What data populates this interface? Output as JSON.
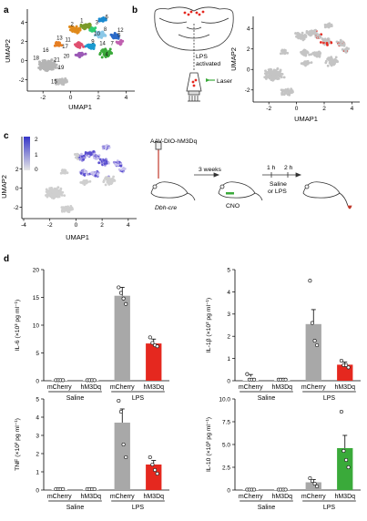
{
  "panel_letters": {
    "a": "a",
    "b": "b",
    "c": "c",
    "d": "d"
  },
  "umap": {
    "xlabel": "UMAP1",
    "ylabel": "UMAP2",
    "xticks": [
      "-2",
      "0",
      "2",
      "4"
    ],
    "yticks": [
      "4",
      "2",
      "0",
      "-2"
    ],
    "xticks_c": [
      "-4",
      "-2",
      "0",
      "2",
      "4"
    ],
    "yticks_c": [
      "2",
      "0",
      "-2"
    ]
  },
  "cluster_labels": [
    "1",
    "2",
    "3",
    "4",
    "5",
    "6",
    "7",
    "8",
    "9",
    "10",
    "11",
    "12",
    "13",
    "14",
    "15",
    "16",
    "17",
    "18",
    "19",
    "20",
    "21"
  ],
  "schematic_b": {
    "lps_line1": "LPS",
    "lps_line2": "activated",
    "laser": "Laser"
  },
  "colorbar": {
    "ticks": [
      "2",
      "1",
      "0"
    ]
  },
  "schematic_c": {
    "virus": "AAV-DIO-hM3Dq",
    "weeks": "3 weeks",
    "mouse": "Dbh-cre",
    "cno": "CNO",
    "t1": "1 h",
    "t2": "2 h",
    "saline": "Saline",
    "or_lps": "or LPS"
  },
  "colors": {
    "saline": "#ffffff",
    "lps_mcherry": "#a8a8a8",
    "hm3dq_red": "#e5281f",
    "il10_green": "#3aaa3a",
    "umap_grey": "#c4c4c4"
  },
  "chart_data": [
    {
      "type": "bar",
      "ylabel": "IL-6 (×10³ pg ml⁻¹)",
      "ylim": [
        0,
        20
      ],
      "yticks": [
        "0",
        "5",
        "10",
        "15",
        "20"
      ],
      "categories": [
        "mCherry",
        "hM3Dq",
        "mCherry",
        "hM3Dq"
      ],
      "groups": [
        "Saline",
        "LPS"
      ],
      "values": [
        0.1,
        0.1,
        15.3,
        6.7
      ],
      "errors": [
        0,
        0,
        1.5,
        0.8
      ],
      "points": [
        [
          0.1,
          0.1,
          0.1,
          0.1
        ],
        [
          0.1,
          0.1,
          0.1,
          0.1
        ],
        [
          16.8,
          15.8,
          14.8,
          13.8
        ],
        [
          7.8,
          6.8,
          6.4,
          6.2
        ]
      ]
    },
    {
      "type": "bar",
      "ylabel": "IL-1β (×10² pg ml⁻¹)",
      "ylim": [
        0,
        5
      ],
      "yticks": [
        "0",
        "1",
        "2",
        "3",
        "4",
        "5"
      ],
      "categories": [
        "mCherry",
        "hM3Dq",
        "mCherry",
        "hM3Dq"
      ],
      "groups": [
        "Saline",
        "LPS"
      ],
      "values": [
        0.18,
        0.05,
        2.55,
        0.72
      ],
      "errors": [
        0.1,
        0,
        0.65,
        0.12
      ],
      "points": [
        [
          0.3,
          0.05,
          0.05,
          0.05
        ],
        [
          0.05,
          0.05,
          0.05,
          0.05
        ],
        [
          4.5,
          2.6,
          1.8,
          1.6
        ],
        [
          0.9,
          0.7,
          0.7,
          0.6
        ]
      ]
    },
    {
      "type": "bar",
      "ylabel": "TNF (×10² pg ml⁻¹)",
      "ylim": [
        0,
        5
      ],
      "yticks": [
        "0",
        "1",
        "2",
        "3",
        "4",
        "5"
      ],
      "categories": [
        "mCherry",
        "hM3Dq",
        "mCherry",
        "hM3Dq"
      ],
      "groups": [
        "Saline",
        "LPS"
      ],
      "values": [
        0.05,
        0.05,
        3.7,
        1.4
      ],
      "errors": [
        0,
        0,
        0.75,
        0.22
      ],
      "points": [
        [
          0.05,
          0.05,
          0.05,
          0.05
        ],
        [
          0.05,
          0.05,
          0.05,
          0.05
        ],
        [
          4.9,
          4.3,
          2.5,
          1.8
        ],
        [
          1.8,
          1.4,
          1.1,
          0.9
        ]
      ]
    },
    {
      "type": "bar",
      "ylabel": "IL-10 (×10³ pg ml⁻¹)",
      "ylim": [
        0,
        10
      ],
      "yticks": [
        "0",
        "2.5",
        "5.0",
        "7.5",
        "10.0"
      ],
      "categories": [
        "mCherry",
        "hM3Dq",
        "mCherry",
        "hM3Dq"
      ],
      "groups": [
        "Saline",
        "LPS"
      ],
      "values": [
        0.05,
        0.05,
        0.85,
        4.6
      ],
      "errors": [
        0,
        0,
        0.3,
        1.4
      ],
      "points": [
        [
          0.05,
          0.05,
          0.05,
          0.05
        ],
        [
          0.05,
          0.05,
          0.05,
          0.05
        ],
        [
          1.3,
          1.0,
          0.7,
          0.4
        ],
        [
          8.6,
          4.3,
          3.3,
          2.5
        ]
      ]
    }
  ]
}
